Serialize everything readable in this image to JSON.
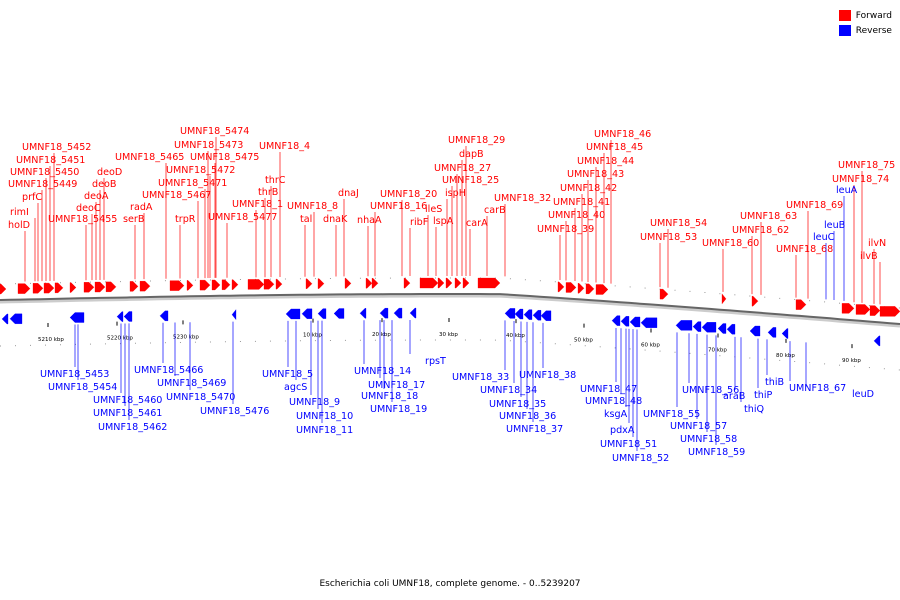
{
  "legend": {
    "forward_label": "Forward",
    "reverse_label": "Reverse",
    "forward_color": "#ff0000",
    "reverse_color": "#0000ff"
  },
  "caption": "Escherichia coli UMNF18, complete genome. - 0..5239207",
  "ticks": [
    "5210 kbp",
    "5220 kbp",
    "5230 kbp",
    "10 kbp",
    "20 kbp",
    "30 kbp",
    "40 kbp",
    "50 kbp",
    "60 kbp",
    "70 kbp",
    "80 kbp",
    "90 kbp"
  ],
  "forward_genes": [
    "UMNF18_5452",
    "UMNF18_5451",
    "UMNF18_5450",
    "UMNF18_5449",
    "prfC",
    "rimI",
    "holD",
    "deoD",
    "deoB",
    "deoA",
    "deoC",
    "UMNF18_5455",
    "serB",
    "radA",
    "UMNF18_5465",
    "trpR",
    "UMNF18_5467",
    "UMNF18_5471",
    "UMNF18_5472",
    "UMNF18_5475",
    "UMNF18_5473",
    "UMNF18_5474",
    "UMNF18_5477",
    "UMNF18_1",
    "thrB",
    "thrC",
    "UMNF18_4",
    "tal",
    "UMNF18_8",
    "dnaK",
    "dnaJ",
    "nhaA",
    "UMNF18_16",
    "UMNF18_20",
    "ribF",
    "ileS",
    "lspA",
    "ispH",
    "UMNF18_25",
    "UMNF18_27",
    "dapB",
    "UMNF18_29",
    "carA",
    "carB",
    "UMNF18_32",
    "UMNF18_39",
    "UMNF18_40",
    "UMNF18_41",
    "UMNF18_42",
    "UMNF18_43",
    "UMNF18_44",
    "UMNF18_45",
    "UMNF18_46",
    "UMNF18_53",
    "UMNF18_54",
    "UMNF18_60",
    "UMNF18_62",
    "UMNF18_63",
    "UMNF18_68",
    "UMNF18_69",
    "UMNF18_74",
    "UMNF18_75",
    "ilvN",
    "ilvB"
  ],
  "reverse_genes": [
    "UMNF18_5453",
    "UMNF18_5454",
    "UMNF18_5460",
    "UMNF18_5461",
    "UMNF18_5462",
    "UMNF18_5466",
    "UMNF18_5469",
    "UMNF18_5470",
    "UMNF18_5476",
    "UMNF18_5",
    "agcS",
    "UMNF18_9",
    "UMNF18_10",
    "UMNF18_11",
    "UMNF18_14",
    "UMNF18_17",
    "UMNF18_18",
    "UMNF18_19",
    "rpsT",
    "UMNF18_33",
    "UMNF18_34",
    "UMNF18_35",
    "UMNF18_36",
    "UMNF18_37",
    "UMNF18_38",
    "UMNF18_47",
    "UMNF18_48",
    "ksgA",
    "pdxA",
    "UMNF18_51",
    "UMNF18_52",
    "UMNF18_55",
    "UMNF18_56",
    "UMNF18_57",
    "UMNF18_58",
    "UMNF18_59",
    "araB",
    "thiQ",
    "thiP",
    "thiB",
    "UMNF18_67",
    "leuD",
    "leuA",
    "leuB",
    "leuC"
  ]
}
